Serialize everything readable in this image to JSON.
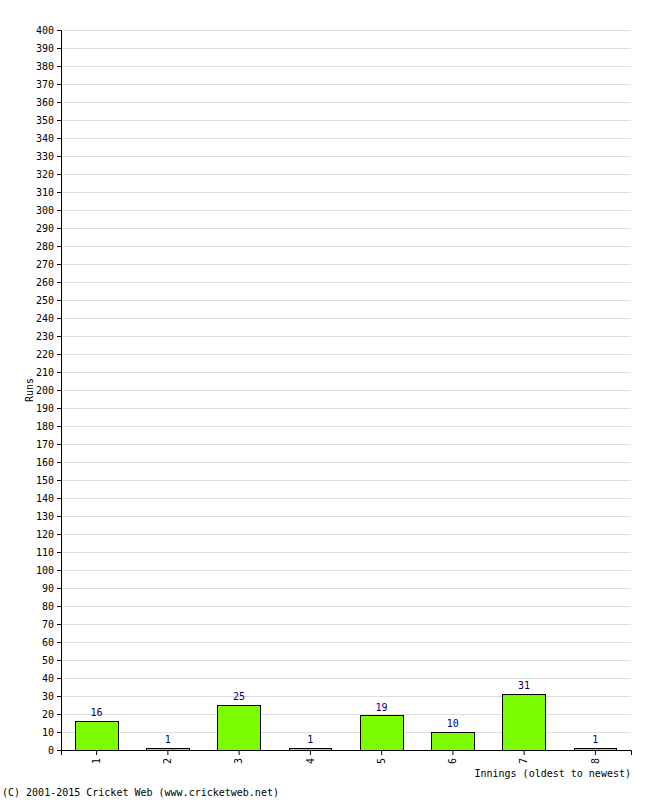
{
  "chart_data": {
    "type": "bar",
    "y_label": "Runs",
    "x_label": "Innings (oldest to newest)",
    "annotation": "(C) 2001-2015 Cricket Web (www.cricketweb.net)",
    "categories": [
      "1",
      "2",
      "3",
      "4",
      "5",
      "6",
      "7",
      "8"
    ],
    "values": [
      16,
      1,
      25,
      1,
      19,
      10,
      31,
      1
    ],
    "color": "#7cfc00",
    "ylim": [
      0,
      400
    ],
    "yticks": [
      0,
      10,
      20,
      30,
      40,
      50,
      60,
      70,
      80,
      90,
      100,
      110,
      120,
      130,
      140,
      150,
      160,
      170,
      180,
      190,
      200,
      210,
      220,
      230,
      240,
      250,
      260,
      270,
      280,
      290,
      300,
      310,
      320,
      330,
      340,
      350,
      360,
      370,
      380,
      390,
      400
    ],
    "grid": true,
    "data_labels": true
  }
}
